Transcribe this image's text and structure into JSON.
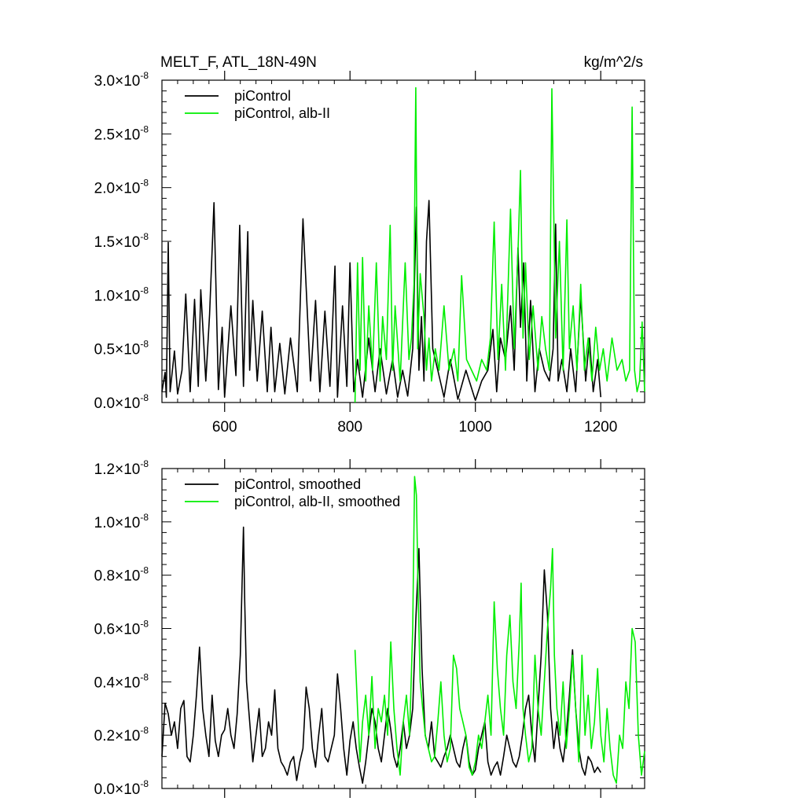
{
  "chart_data": [
    {
      "type": "line",
      "title": "MELT_F, ATL_18N-49N",
      "units": "kg/m^2/s",
      "xlim": [
        500,
        1270
      ],
      "ylim": [
        0,
        3e-08
      ],
      "x_ticks": [
        600,
        800,
        1000,
        1200
      ],
      "y_ticks": [
        {
          "mantissa": "0.0",
          "exp": "-8",
          "value": 0.0
        },
        {
          "mantissa": "0.5",
          "exp": "-8",
          "value": 0.5
        },
        {
          "mantissa": "1.0",
          "exp": "-8",
          "value": 1.0
        },
        {
          "mantissa": "1.5",
          "exp": "-8",
          "value": 1.5
        },
        {
          "mantissa": "2.0",
          "exp": "-8",
          "value": 2.0
        },
        {
          "mantissa": "2.5",
          "exp": "-8",
          "value": 2.5
        },
        {
          "mantissa": "3.0",
          "exp": "-8",
          "value": 3.0
        }
      ],
      "y_scale_unit": "x1e-8",
      "legend_position": "top-left",
      "series": [
        {
          "name": "piControl",
          "color": "#000000",
          "x": [
            500,
            505,
            507,
            510,
            513,
            520,
            525,
            532,
            538,
            545,
            552,
            558,
            562,
            570,
            576,
            583,
            590,
            596,
            600,
            610,
            618,
            624,
            630,
            637,
            640,
            645,
            652,
            660,
            668,
            674,
            680,
            688,
            696,
            705,
            716,
            725,
            737,
            745,
            752,
            760,
            768,
            776,
            780,
            788,
            795,
            800,
            806,
            812,
            820,
            830,
            840,
            848,
            858,
            868,
            876,
            884,
            892,
            900,
            906,
            910,
            914,
            918,
            922,
            926,
            932,
            940,
            950,
            960,
            972,
            985,
            1000,
            1010,
            1020,
            1028,
            1034,
            1040,
            1048,
            1056,
            1062,
            1068,
            1072,
            1077,
            1082,
            1088,
            1095,
            1102,
            1110,
            1118,
            1124,
            1128,
            1132,
            1138,
            1146,
            1152,
            1160,
            1168,
            1176,
            1182,
            1188,
            1195,
            1200
          ],
          "y": [
            0.1,
            0.28,
            0.05,
            1.49,
            0.1,
            0.48,
            0.08,
            0.3,
            1.01,
            0.1,
            0.96,
            0.15,
            1.05,
            0.2,
            0.82,
            1.86,
            0.12,
            0.7,
            0.05,
            0.9,
            0.25,
            1.65,
            0.15,
            1.59,
            0.3,
            0.95,
            0.2,
            0.85,
            0.1,
            0.7,
            0.1,
            0.55,
            0.08,
            0.6,
            0.1,
            1.71,
            0.2,
            0.95,
            0.1,
            0.85,
            0.15,
            1.27,
            0.05,
            0.9,
            0.15,
            1.3,
            0.1,
            0.4,
            0.05,
            0.6,
            0.1,
            0.5,
            0.08,
            0.4,
            0.05,
            0.3,
            0.06,
            0.5,
            1.82,
            0.3,
            0.8,
            0.2,
            1.5,
            1.88,
            0.5,
            0.3,
            0.05,
            0.4,
            0.03,
            0.3,
            0.02,
            0.2,
            0.3,
            0.68,
            0.1,
            0.6,
            0.4,
            0.9,
            0.3,
            1.44,
            0.7,
            1.3,
            0.2,
            0.95,
            0.1,
            0.5,
            0.3,
            0.2,
            0.5,
            1.66,
            0.2,
            0.4,
            0.1,
            0.5,
            0.1,
            0.99,
            0.2,
            0.6,
            0.1,
            0.4,
            0.05
          ]
        },
        {
          "name": "piControl, alb-II",
          "color": "#00ee00",
          "x": [
            808,
            812,
            816,
            820,
            825,
            830,
            836,
            842,
            848,
            852,
            858,
            864,
            868,
            872,
            880,
            888,
            894,
            898,
            902,
            905,
            908,
            912,
            918,
            922,
            926,
            930,
            936,
            942,
            950,
            958,
            966,
            972,
            978,
            986,
            994,
            1002,
            1010,
            1018,
            1024,
            1030,
            1036,
            1042,
            1048,
            1056,
            1062,
            1068,
            1072,
            1076,
            1080,
            1086,
            1092,
            1100,
            1106,
            1112,
            1118,
            1122,
            1128,
            1134,
            1140,
            1146,
            1150,
            1156,
            1162,
            1168,
            1174,
            1180,
            1186,
            1192,
            1198,
            1204,
            1210,
            1218,
            1226,
            1234,
            1240,
            1246,
            1250,
            1254,
            1258,
            1262,
            1266,
            1270
          ],
          "y": [
            0.0,
            1.3,
            0.3,
            1.35,
            0.2,
            0.9,
            0.3,
            1.3,
            0.2,
            0.8,
            0.4,
            1.65,
            0.3,
            0.9,
            0.2,
            1.3,
            0.4,
            0.6,
            1.1,
            2.93,
            0.5,
            1.2,
            0.8,
            0.3,
            0.6,
            0.2,
            0.5,
            0.3,
            0.9,
            0.3,
            0.5,
            0.2,
            1.18,
            0.4,
            0.3,
            0.2,
            0.4,
            0.3,
            0.6,
            1.68,
            0.4,
            1.1,
            0.3,
            1.8,
            0.5,
            1.4,
            2.16,
            0.6,
            1.3,
            0.4,
            0.9,
            0.3,
            0.8,
            0.5,
            0.3,
            2.92,
            0.6,
            1.5,
            0.3,
            1.7,
            0.5,
            0.9,
            0.3,
            1.1,
            0.3,
            0.6,
            0.2,
            0.7,
            0.3,
            0.5,
            0.2,
            0.6,
            0.3,
            0.4,
            0.2,
            0.3,
            2.75,
            0.3,
            0.1,
            0.2,
            0.75,
            0.1
          ]
        }
      ]
    },
    {
      "type": "line",
      "xlim": [
        500,
        1270
      ],
      "ylim": [
        0,
        1.2e-08
      ],
      "x_ticks": [
        600,
        800,
        1000,
        1200
      ],
      "y_ticks": [
        {
          "mantissa": "0.0",
          "exp": "-8",
          "value": 0.0
        },
        {
          "mantissa": "0.2",
          "exp": "-8",
          "value": 0.2
        },
        {
          "mantissa": "0.4",
          "exp": "-8",
          "value": 0.4
        },
        {
          "mantissa": "0.6",
          "exp": "-8",
          "value": 0.6
        },
        {
          "mantissa": "0.8",
          "exp": "-8",
          "value": 0.8
        },
        {
          "mantissa": "1.0",
          "exp": "-8",
          "value": 1.0
        },
        {
          "mantissa": "1.2",
          "exp": "-8",
          "value": 1.2
        }
      ],
      "y_scale_unit": "x1e-8",
      "legend_position": "top-left",
      "series": [
        {
          "name": "piControl, smoothed",
          "color": "#000000",
          "x": [
            500,
            505,
            510,
            515,
            520,
            525,
            530,
            535,
            540,
            545,
            550,
            555,
            560,
            565,
            570,
            575,
            580,
            585,
            590,
            595,
            600,
            605,
            610,
            615,
            620,
            625,
            630,
            632,
            635,
            640,
            645,
            650,
            655,
            660,
            665,
            670,
            675,
            680,
            685,
            690,
            695,
            700,
            705,
            710,
            715,
            720,
            725,
            730,
            735,
            740,
            745,
            750,
            755,
            760,
            765,
            770,
            775,
            780,
            785,
            790,
            795,
            800,
            805,
            810,
            815,
            820,
            825,
            830,
            835,
            840,
            845,
            850,
            855,
            860,
            865,
            870,
            875,
            880,
            885,
            890,
            895,
            900,
            905,
            910,
            915,
            920,
            925,
            930,
            935,
            940,
            945,
            950,
            955,
            960,
            965,
            970,
            975,
            980,
            985,
            990,
            995,
            1000,
            1005,
            1010,
            1015,
            1020,
            1025,
            1030,
            1035,
            1040,
            1045,
            1050,
            1055,
            1060,
            1065,
            1070,
            1075,
            1080,
            1085,
            1090,
            1095,
            1100,
            1105,
            1110,
            1115,
            1120,
            1125,
            1130,
            1135,
            1140,
            1145,
            1150,
            1155,
            1160,
            1165,
            1170,
            1175,
            1180,
            1185,
            1190,
            1195,
            1200
          ],
          "y": [
            0.12,
            0.32,
            0.28,
            0.2,
            0.25,
            0.15,
            0.3,
            0.33,
            0.12,
            0.1,
            0.2,
            0.35,
            0.53,
            0.3,
            0.2,
            0.12,
            0.35,
            0.18,
            0.12,
            0.2,
            0.22,
            0.3,
            0.2,
            0.15,
            0.28,
            0.5,
            0.98,
            0.7,
            0.4,
            0.25,
            0.1,
            0.2,
            0.3,
            0.12,
            0.15,
            0.25,
            0.2,
            0.37,
            0.15,
            0.1,
            0.08,
            0.05,
            0.1,
            0.12,
            0.03,
            0.1,
            0.15,
            0.38,
            0.3,
            0.15,
            0.08,
            0.2,
            0.3,
            0.12,
            0.1,
            0.15,
            0.2,
            0.43,
            0.3,
            0.15,
            0.05,
            0.18,
            0.25,
            0.15,
            0.08,
            0.02,
            0.1,
            0.2,
            0.3,
            0.25,
            0.15,
            0.1,
            0.2,
            0.3,
            0.22,
            0.12,
            0.08,
            0.15,
            0.25,
            0.15,
            0.2,
            0.3,
            0.63,
            0.9,
            0.45,
            0.2,
            0.15,
            0.25,
            0.12,
            0.1,
            0.08,
            0.12,
            0.15,
            0.2,
            0.15,
            0.1,
            0.08,
            0.15,
            0.2,
            0.1,
            0.05,
            0.07,
            0.15,
            0.2,
            0.25,
            0.1,
            0.05,
            0.08,
            0.1,
            0.05,
            0.12,
            0.2,
            0.15,
            0.1,
            0.08,
            0.12,
            0.2,
            0.3,
            0.35,
            0.2,
            0.1,
            0.3,
            0.5,
            0.82,
            0.65,
            0.3,
            0.15,
            0.25,
            0.15,
            0.1,
            0.2,
            0.35,
            0.52,
            0.3,
            0.15,
            0.08,
            0.05,
            0.12,
            0.1,
            0.06,
            0.08,
            0.06
          ]
        },
        {
          "name": "piControl, alb-II, smoothed",
          "color": "#00ee00",
          "x": [
            808,
            812,
            816,
            820,
            825,
            830,
            835,
            840,
            845,
            850,
            855,
            860,
            865,
            870,
            875,
            880,
            885,
            890,
            895,
            900,
            903,
            906,
            909,
            912,
            916,
            920,
            925,
            930,
            935,
            940,
            945,
            950,
            955,
            960,
            965,
            970,
            975,
            980,
            985,
            990,
            995,
            1000,
            1005,
            1010,
            1015,
            1020,
            1025,
            1030,
            1035,
            1040,
            1045,
            1050,
            1055,
            1060,
            1065,
            1070,
            1073,
            1076,
            1080,
            1085,
            1090,
            1095,
            1100,
            1105,
            1110,
            1115,
            1120,
            1123,
            1126,
            1130,
            1135,
            1140,
            1145,
            1150,
            1155,
            1160,
            1165,
            1170,
            1175,
            1180,
            1185,
            1190,
            1195,
            1200,
            1205,
            1210,
            1215,
            1220,
            1225,
            1230,
            1235,
            1240,
            1245,
            1250,
            1255,
            1260,
            1265,
            1270
          ],
          "y": [
            0.52,
            0.3,
            0.1,
            0.25,
            0.35,
            0.2,
            0.42,
            0.15,
            0.3,
            0.25,
            0.35,
            0.2,
            0.55,
            0.3,
            0.15,
            0.05,
            0.25,
            0.35,
            0.2,
            0.6,
            1.17,
            1.1,
            0.7,
            0.4,
            0.3,
            0.2,
            0.15,
            0.1,
            0.12,
            0.25,
            0.4,
            0.2,
            0.1,
            0.15,
            0.5,
            0.45,
            0.3,
            0.25,
            0.2,
            0.08,
            0.05,
            0.1,
            0.2,
            0.15,
            0.25,
            0.35,
            0.2,
            0.7,
            0.45,
            0.3,
            0.2,
            0.5,
            0.65,
            0.4,
            0.3,
            0.55,
            0.77,
            0.3,
            0.2,
            0.1,
            0.15,
            0.5,
            0.3,
            0.2,
            0.4,
            0.6,
            0.75,
            0.9,
            0.5,
            0.3,
            0.2,
            0.4,
            0.15,
            0.3,
            0.5,
            0.3,
            0.1,
            0.5,
            0.2,
            0.35,
            0.15,
            0.25,
            0.45,
            0.2,
            0.1,
            0.3,
            0.15,
            0.05,
            0.02,
            0.2,
            0.15,
            0.4,
            0.3,
            0.6,
            0.55,
            0.2,
            0.05,
            0.14
          ]
        }
      ]
    }
  ]
}
